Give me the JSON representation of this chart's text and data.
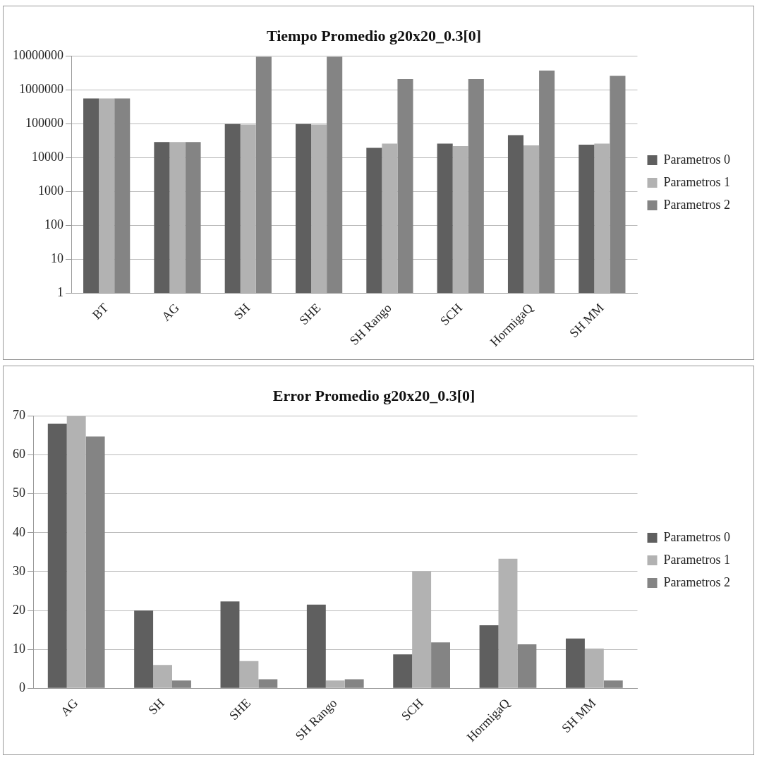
{
  "chart_data": [
    {
      "type": "bar",
      "title": "Tiempo Promedio g20x20_0.3[0]",
      "categories": [
        "BT",
        "AG",
        "SH",
        "SHE",
        "SH Rango",
        "SCH",
        "HormigaQ",
        "SH MM"
      ],
      "series": [
        {
          "name": "Parametros 0",
          "color": "#5f5f5f",
          "values": [
            560000,
            29000,
            98000,
            98000,
            19500,
            26000,
            46000,
            24000
          ]
        },
        {
          "name": "Parametros 1",
          "color": "#b2b2b2",
          "values": [
            560000,
            29000,
            95000,
            95000,
            26000,
            22000,
            23000,
            26000
          ]
        },
        {
          "name": "Parametros 2",
          "color": "#848484",
          "values": [
            560000,
            29000,
            9500000,
            9500000,
            2100000,
            2100000,
            3700000,
            2600000
          ]
        }
      ],
      "log": true,
      "ylim": [
        1,
        10000000
      ],
      "yticks": [
        1,
        10,
        100,
        1000,
        10000,
        100000,
        1000000,
        10000000
      ],
      "grid": "y",
      "legend": "right"
    },
    {
      "type": "bar",
      "title": "Error Promedio g20x20_0.3[0]",
      "categories": [
        "AG",
        "SH",
        "SHE",
        "SH Rango",
        "SCH",
        "HormigaQ",
        "SH MM"
      ],
      "series": [
        {
          "name": "Parametros 0",
          "color": "#5f5f5f",
          "values": [
            68,
            20,
            22.3,
            21.5,
            8.7,
            16.2,
            12.8
          ]
        },
        {
          "name": "Parametros 1",
          "color": "#b2b2b2",
          "values": [
            70,
            6,
            7,
            2,
            30,
            33.3,
            10.2
          ]
        },
        {
          "name": "Parametros 2",
          "color": "#848484",
          "values": [
            64.7,
            2,
            2.3,
            2.3,
            11.8,
            11.3,
            2
          ]
        }
      ],
      "ylim": [
        0,
        70
      ],
      "yticks": [
        0,
        10,
        20,
        30,
        40,
        50,
        60,
        70
      ],
      "grid": "y",
      "legend": "right"
    }
  ]
}
